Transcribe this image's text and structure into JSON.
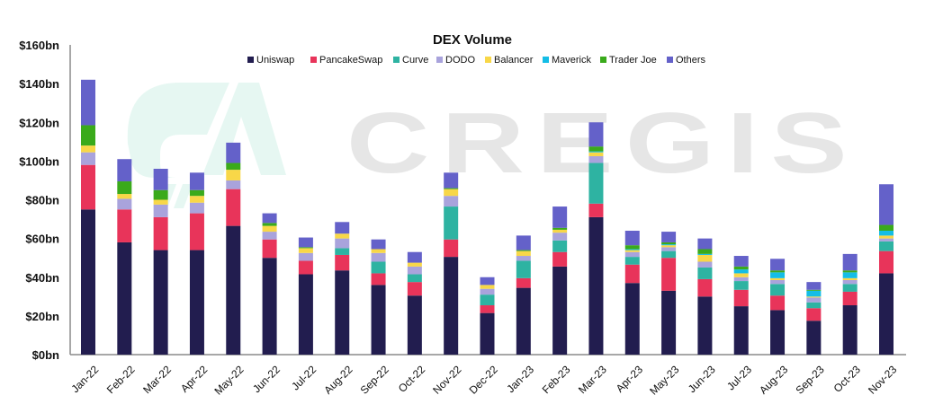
{
  "chart_data": {
    "type": "bar",
    "stacked": true,
    "title": "DEX Volume",
    "xlabel": "",
    "ylabel": "",
    "ylim": [
      0,
      160
    ],
    "yticks": [
      "$0bn",
      "$20bn",
      "$40bn",
      "$60bn",
      "$80bn",
      "$100bn",
      "$120bn",
      "$140bn",
      "$160bn"
    ],
    "ytick_values": [
      0,
      20,
      40,
      60,
      80,
      100,
      120,
      140,
      160
    ],
    "grid": false,
    "legend_position": "top",
    "categories": [
      "Jan-22",
      "Feb-22",
      "Mar-22",
      "Apr-22",
      "May-22",
      "Jun-22",
      "Jul-22",
      "Aug-22",
      "Sep-22",
      "Oct-22",
      "Nov-22",
      "Dec-22",
      "Jan-23",
      "Feb-23",
      "Mar-23",
      "Apr-23",
      "May-23",
      "Jun-23",
      "Jul-23",
      "Aug-23",
      "Sep-23",
      "Oct-23",
      "Nov-23"
    ],
    "series": [
      {
        "name": "Uniswap",
        "color": "#221d4f",
        "values": [
          75,
          58,
          54,
          54,
          66.5,
          50,
          41.5,
          43.5,
          36,
          30.5,
          50.5,
          21.5,
          34.5,
          45.5,
          71,
          37,
          33,
          30,
          25,
          23,
          17.5,
          25.5,
          42
        ]
      },
      {
        "name": "PancakeSwap",
        "color": "#e8345a",
        "values": [
          23,
          17,
          17,
          19,
          19,
          9.5,
          7,
          8,
          6,
          7,
          9,
          4,
          5,
          7.5,
          7,
          9.5,
          17,
          9,
          8.5,
          7.5,
          6.5,
          7,
          11.5
        ]
      },
      {
        "name": "Curve",
        "color": "#2eb3a2",
        "values": [
          0,
          0,
          0,
          0,
          0,
          0,
          0,
          3.5,
          6,
          4,
          17,
          5.5,
          9,
          6,
          21,
          4,
          3.5,
          6,
          4.5,
          6,
          3,
          4,
          5
        ]
      },
      {
        "name": "DODO",
        "color": "#a9a3dc",
        "values": [
          6.5,
          5.5,
          6.5,
          5.5,
          4.5,
          4,
          4,
          5,
          4.5,
          4,
          5.5,
          3,
          2.5,
          4,
          3.5,
          2.5,
          2,
          3,
          2,
          2,
          2.5,
          2,
          1.5
        ]
      },
      {
        "name": "Balancer",
        "color": "#f8d748",
        "values": [
          3.5,
          2.5,
          2.5,
          3.5,
          5.5,
          3,
          2.5,
          2.5,
          2,
          2,
          3.5,
          2,
          2.5,
          1.5,
          2,
          1,
          1,
          3.5,
          2,
          1,
          0.5,
          1,
          1.5
        ]
      },
      {
        "name": "Maverick",
        "color": "#14bde6",
        "values": [
          0,
          0,
          0,
          0,
          0,
          0,
          0,
          0,
          0,
          0,
          0,
          0,
          0,
          0,
          0.5,
          0.5,
          0.5,
          0.5,
          2,
          3,
          3,
          3,
          2.5
        ]
      },
      {
        "name": "Trader Joe",
        "color": "#3aaa1b",
        "values": [
          10.5,
          6.5,
          5,
          3,
          3.5,
          1.5,
          0.5,
          0,
          0,
          0,
          0.5,
          0,
          0.5,
          1,
          2.5,
          2,
          1,
          2.5,
          1.5,
          1,
          0.5,
          1,
          3
        ]
      },
      {
        "name": "Others",
        "color": "#6461c9",
        "values": [
          23.5,
          11.5,
          11,
          9,
          10.5,
          5,
          5,
          6,
          5,
          5.5,
          8,
          4,
          7.5,
          11,
          12.5,
          7.5,
          5.5,
          5.5,
          5.5,
          6,
          4,
          8.5,
          21
        ]
      }
    ]
  },
  "watermark": {
    "text": "CREGIS",
    "logo_mark": "CA"
  }
}
